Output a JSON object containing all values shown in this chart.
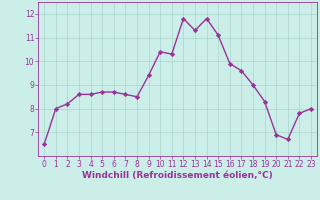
{
  "x": [
    0,
    1,
    2,
    3,
    4,
    5,
    6,
    7,
    8,
    9,
    10,
    11,
    12,
    13,
    14,
    15,
    16,
    17,
    18,
    19,
    20,
    21,
    22,
    23
  ],
  "y": [
    6.5,
    8.0,
    8.2,
    8.6,
    8.6,
    8.7,
    8.7,
    8.6,
    8.5,
    9.4,
    10.4,
    10.3,
    11.8,
    11.3,
    11.8,
    11.1,
    9.9,
    9.6,
    9.0,
    8.3,
    6.9,
    6.7,
    7.8,
    8.0
  ],
  "line_color": "#993399",
  "marker": "D",
  "marker_size": 2.2,
  "bg_color": "#cceee8",
  "grid_color": "#aad4cc",
  "xlabel": "Windchill (Refroidissement éolien,°C)",
  "xlim": [
    -0.5,
    23.5
  ],
  "ylim": [
    6.0,
    12.5
  ],
  "yticks": [
    7,
    8,
    9,
    10,
    11,
    12
  ],
  "xticks": [
    0,
    1,
    2,
    3,
    4,
    5,
    6,
    7,
    8,
    9,
    10,
    11,
    12,
    13,
    14,
    15,
    16,
    17,
    18,
    19,
    20,
    21,
    22,
    23
  ],
  "tick_fontsize": 5.5,
  "xlabel_fontsize": 6.5,
  "line_width": 1.0
}
